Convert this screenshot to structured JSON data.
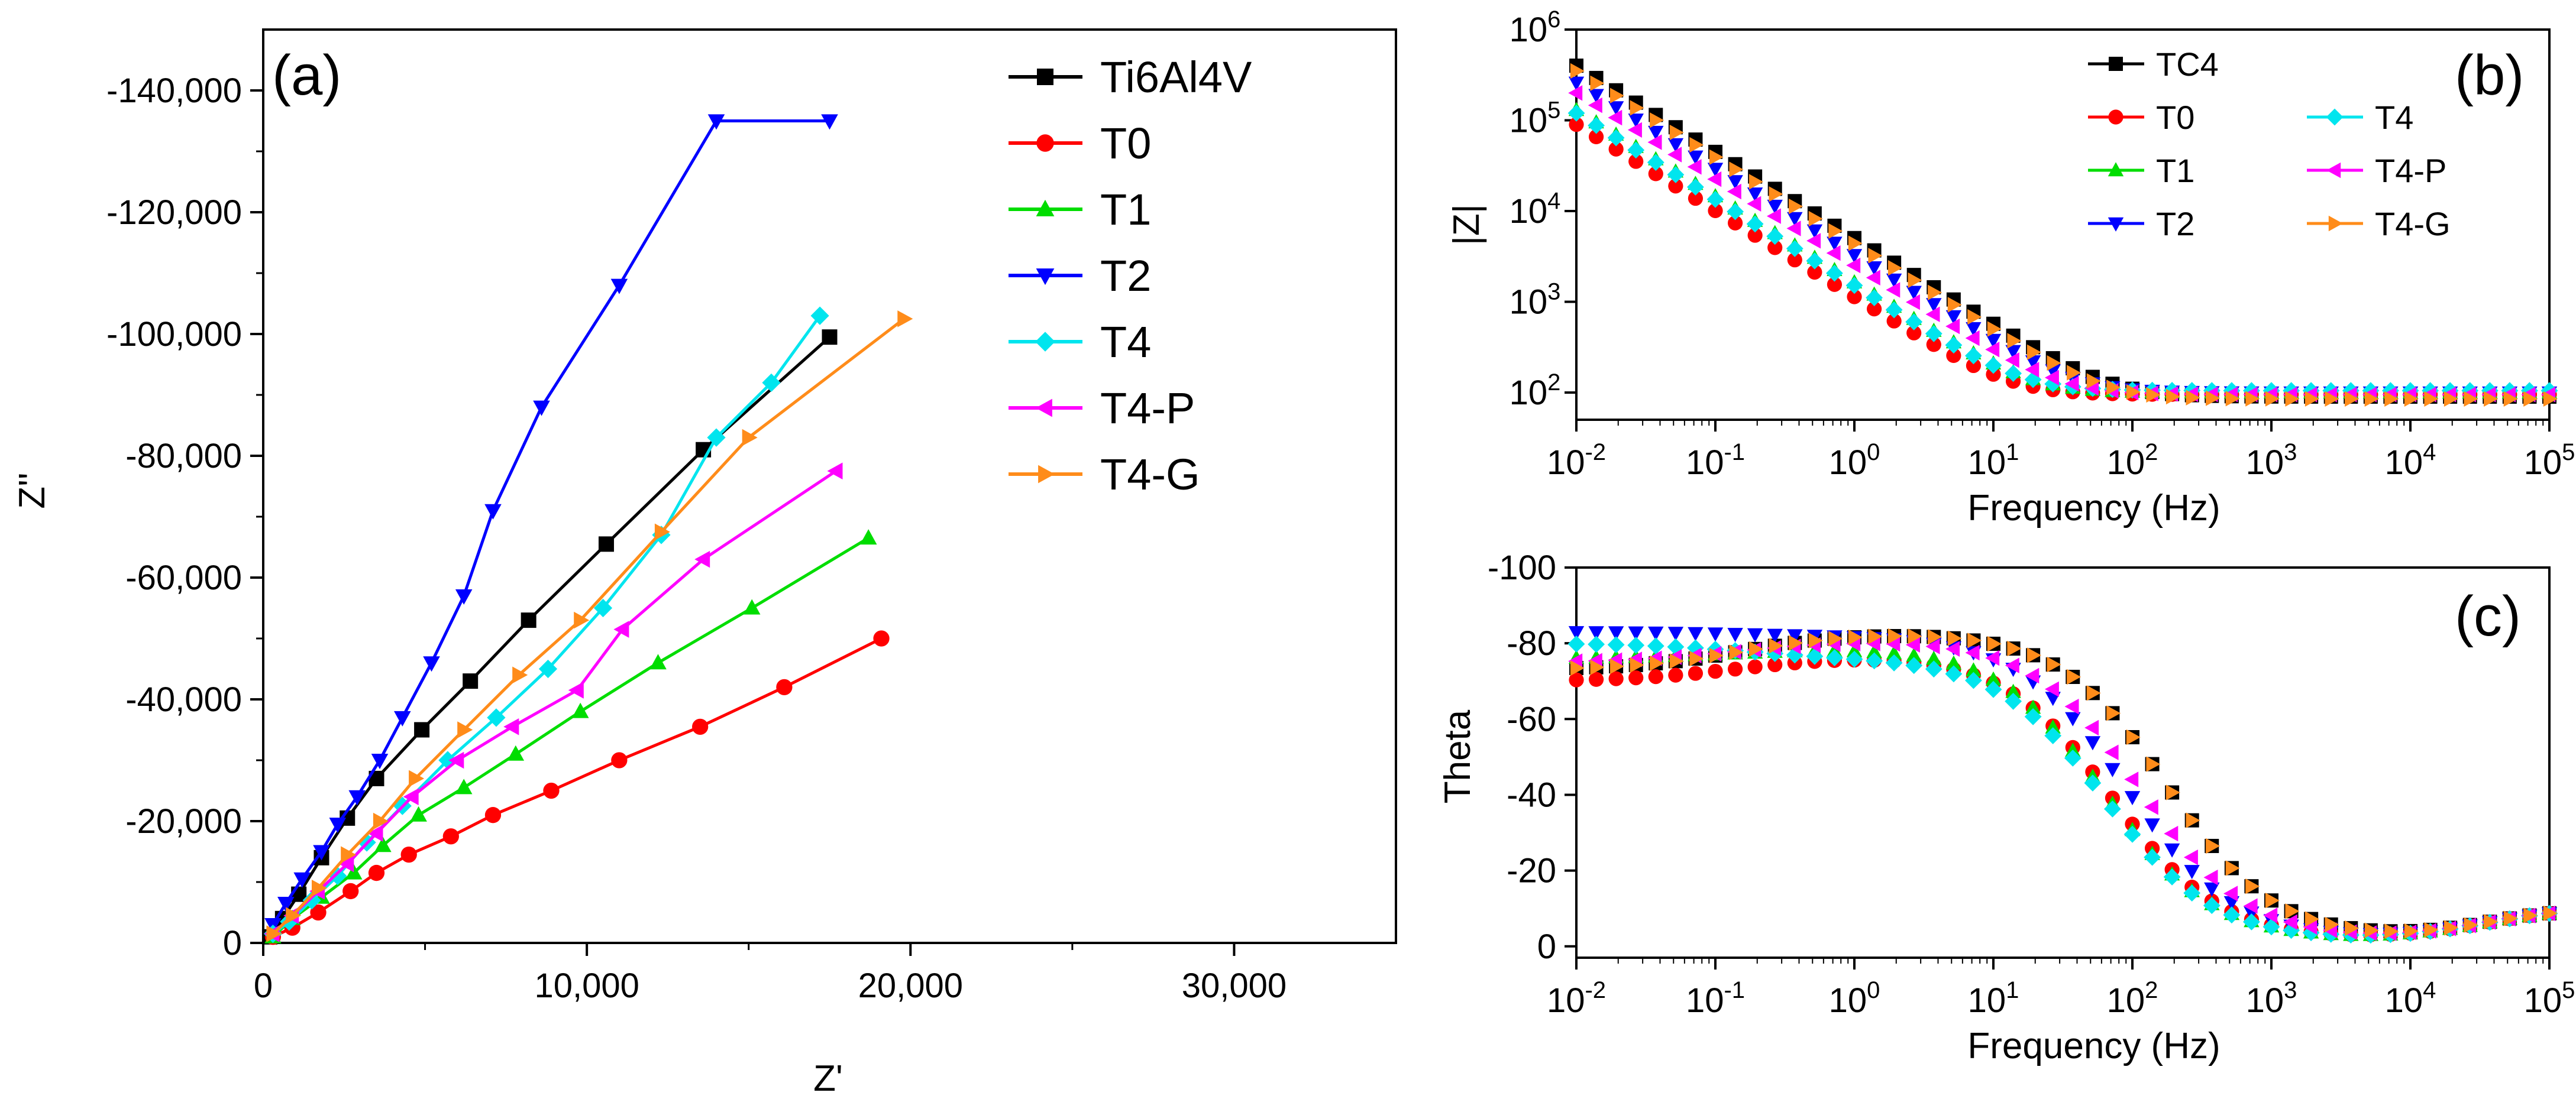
{
  "chart_data": [
    {
      "panel": "(a)",
      "type": "line",
      "title": "",
      "xlabel": "Z'",
      "ylabel": "Z''",
      "xlim": [
        0,
        35000
      ],
      "ylim": [
        0,
        -150000
      ],
      "xticks": [
        0,
        10000,
        20000,
        30000
      ],
      "xtick_labels": [
        "0",
        "10,000",
        "20,000",
        "30,000"
      ],
      "yticks": [
        0,
        -20000,
        -40000,
        -60000,
        -80000,
        -100000,
        -120000,
        -140000
      ],
      "ytick_labels": [
        "0",
        "-20,000",
        "-40,000",
        "-60,000",
        "-80,000",
        "-100,000",
        "-120,000",
        "-140,000"
      ],
      "legend_position": "top-right",
      "series": [
        {
          "name": "Ti6Al4V",
          "color": "#000000",
          "marker": "square",
          "x": [
            200,
            600,
            1100,
            1800,
            2600,
            3500,
            4900,
            6400,
            8200,
            10600,
            13600,
            17500
          ],
          "y": [
            -1000,
            -4000,
            -8000,
            -14000,
            -20500,
            -27000,
            -35000,
            -43000,
            -53000,
            -65500,
            -81000,
            -99500
          ]
        },
        {
          "name": "T0",
          "color": "#ff0000",
          "marker": "circle",
          "x": [
            300,
            900,
            1700,
            2700,
            3500,
            4500,
            5800,
            7100,
            8900,
            11000,
            13500,
            16100,
            19100
          ],
          "y": [
            -1000,
            -2500,
            -5000,
            -8500,
            -11500,
            -14500,
            -17500,
            -21000,
            -25000,
            -30000,
            -35500,
            -42000,
            -50000
          ]
        },
        {
          "name": "T1",
          "color": "#00dd00",
          "marker": "triangle-up",
          "x": [
            300,
            900,
            1800,
            2800,
            3700,
            4800,
            6200,
            7800,
            9800,
            12200,
            15100,
            18700
          ],
          "y": [
            -1000,
            -4000,
            -7500,
            -11500,
            -16000,
            -21000,
            -25500,
            -31000,
            -38000,
            -46000,
            -55000,
            -66500
          ]
        },
        {
          "name": "T2",
          "color": "#0000ff",
          "marker": "triangle-down",
          "x": [
            300,
            700,
            1200,
            1800,
            2300,
            2900,
            3600,
            4300,
            5200,
            6200,
            7100,
            8600,
            11000,
            14000,
            17500
          ],
          "y": [
            -3000,
            -6500,
            -10500,
            -15000,
            -19500,
            -24000,
            -30000,
            -37000,
            -46000,
            -57000,
            -71000,
            -88000,
            -108000,
            -135000,
            -135000
          ]
        },
        {
          "name": "T4",
          "color": "#00e5ee",
          "marker": "diamond",
          "x": [
            300,
            800,
            1500,
            2300,
            3200,
            4300,
            5700,
            7200,
            8800,
            10500,
            12300,
            14000,
            15700,
            17200
          ],
          "y": [
            -1500,
            -3500,
            -7000,
            -11000,
            -16500,
            -22500,
            -30000,
            -37000,
            -45000,
            -55000,
            -67000,
            -83000,
            -92000,
            -103000
          ]
        },
        {
          "name": "T4-P",
          "color": "#ff00ff",
          "marker": "triangle-left",
          "x": [
            300,
            900,
            1700,
            2600,
            3500,
            4600,
            6000,
            7700,
            9700,
            11100,
            13600,
            17700
          ],
          "y": [
            -1500,
            -4500,
            -8500,
            -13000,
            -18000,
            -24000,
            -30000,
            -35500,
            -41500,
            -51500,
            -63000,
            -77500
          ]
        },
        {
          "name": "T4-G",
          "color": "#ff8c1a",
          "marker": "triangle-right",
          "x": [
            300,
            900,
            1700,
            2600,
            3600,
            4700,
            6200,
            7900,
            9800,
            12300,
            15000,
            19800
          ],
          "y": [
            -1500,
            -4500,
            -9000,
            -14500,
            -20000,
            -27000,
            -35000,
            -44000,
            -53000,
            -67500,
            -83000,
            -102500
          ]
        }
      ]
    },
    {
      "panel": "(b)",
      "type": "scatter",
      "title": "",
      "xlabel": "Frequency (Hz)",
      "ylabel": "|Z|",
      "xscale": "log",
      "yscale": "log",
      "xlim_exp": [
        -2,
        5
      ],
      "ylim_exp": [
        1.7,
        6
      ],
      "xtick_bases": [
        "10",
        "10",
        "10",
        "10",
        "10",
        "10",
        "10",
        "10"
      ],
      "xtick_exps": [
        "-2",
        "-1",
        "0",
        "1",
        "2",
        "3",
        "4",
        "5"
      ],
      "ytick_bases": [
        "10",
        "10",
        "10",
        "10",
        "10"
      ],
      "ytick_exps": [
        "2",
        "3",
        "4",
        "5",
        "6"
      ],
      "legend_position": "top-center",
      "series": [
        {
          "name": "TC4",
          "color": "#000000",
          "marker": "square",
          "z_low": 400000.0,
          "z_high": 90
        },
        {
          "name": "T0",
          "color": "#ff0000",
          "marker": "circle",
          "z_low": 90000.0,
          "z_high": 95
        },
        {
          "name": "T1",
          "color": "#00dd00",
          "marker": "triangle-up",
          "z_low": 130000.0,
          "z_high": 100
        },
        {
          "name": "T2",
          "color": "#0000ff",
          "marker": "triangle-down",
          "z_low": 260000.0,
          "z_high": 100
        },
        {
          "name": "T4",
          "color": "#00e5ee",
          "marker": "diamond",
          "z_low": 120000.0,
          "z_high": 105
        },
        {
          "name": "T4-P",
          "color": "#ff00ff",
          "marker": "triangle-left",
          "z_low": 200000.0,
          "z_high": 95
        },
        {
          "name": "T4-G",
          "color": "#ff8c1a",
          "marker": "triangle-right",
          "z_low": 350000.0,
          "z_high": 85
        }
      ]
    },
    {
      "panel": "(c)",
      "type": "scatter",
      "title": "",
      "xlabel": "Frequency (Hz)",
      "ylabel": "Theta",
      "xscale": "log",
      "xlim_exp": [
        -2,
        5
      ],
      "ylim": [
        3,
        -100
      ],
      "yticks": [
        0,
        -20,
        -40,
        -60,
        -80,
        -100
      ],
      "ytick_labels": [
        "0",
        "-20",
        "-40",
        "-60",
        "-80",
        "-100"
      ],
      "xtick_bases": [
        "10",
        "10",
        "10",
        "10",
        "10",
        "10",
        "10",
        "10"
      ],
      "xtick_exps": [
        "-2",
        "-1",
        "0",
        "1",
        "2",
        "3",
        "4",
        "5"
      ],
      "series": [
        {
          "name": "TC4",
          "color": "#000000",
          "marker": "square",
          "theta_low": -73,
          "theta_plateau": -83,
          "midpoint_log_f": 2.25
        },
        {
          "name": "T0",
          "color": "#ff0000",
          "marker": "circle",
          "theta_low": -70,
          "theta_plateau": -77,
          "midpoint_log_f": 1.85
        },
        {
          "name": "T1",
          "color": "#00dd00",
          "marker": "triangle-up",
          "theta_low": -76,
          "theta_plateau": -79,
          "midpoint_log_f": 1.8
        },
        {
          "name": "T2",
          "color": "#0000ff",
          "marker": "triangle-down",
          "theta_low": -83,
          "theta_plateau": -82,
          "midpoint_log_f": 1.95
        },
        {
          "name": "T4",
          "color": "#00e5ee",
          "marker": "diamond",
          "theta_low": -80,
          "theta_plateau": -76,
          "midpoint_log_f": 1.8
        },
        {
          "name": "T4-P",
          "color": "#ff00ff",
          "marker": "triangle-left",
          "theta_low": -75,
          "theta_plateau": -81,
          "midpoint_log_f": 2.05
        },
        {
          "name": "T4-G",
          "color": "#ff8c1a",
          "marker": "triangle-right",
          "theta_low": -73,
          "theta_plateau": -83,
          "midpoint_log_f": 2.25
        }
      ]
    }
  ]
}
